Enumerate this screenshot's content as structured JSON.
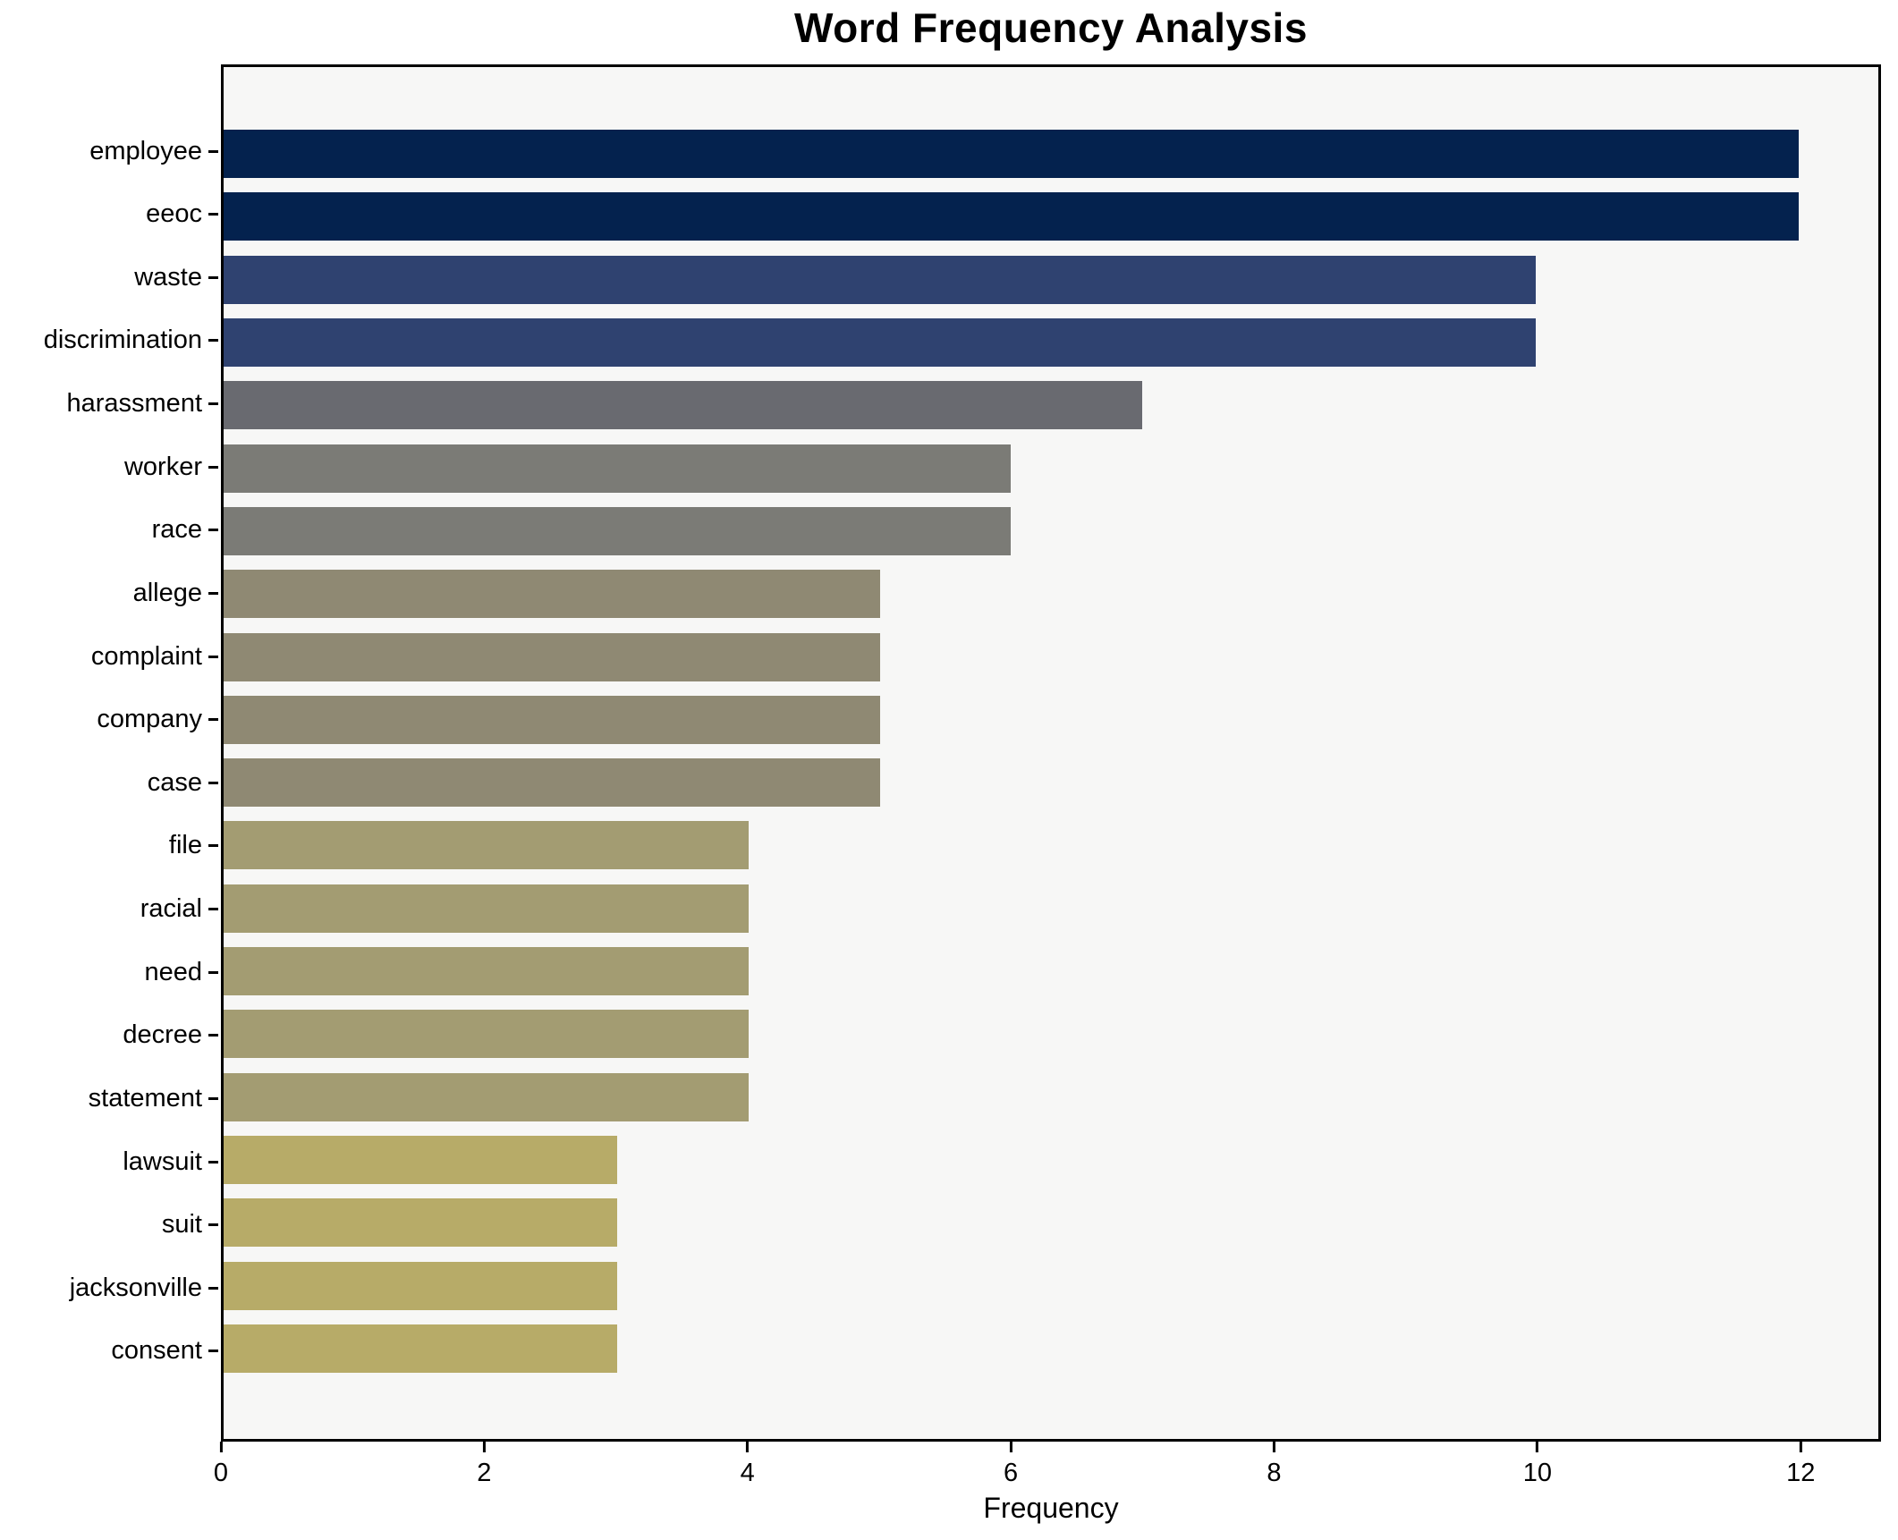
{
  "chart_data": {
    "type": "bar",
    "orientation": "horizontal",
    "title": "Word Frequency Analysis",
    "xlabel": "Frequency",
    "ylabel": "",
    "xlim": [
      0,
      12.61
    ],
    "xticks": [
      0,
      2,
      4,
      6,
      8,
      10,
      12
    ],
    "grid": false,
    "legend": null,
    "categories": [
      "employee",
      "eeoc",
      "waste",
      "discrimination",
      "harassment",
      "worker",
      "race",
      "allege",
      "complaint",
      "company",
      "case",
      "file",
      "racial",
      "need",
      "decree",
      "statement",
      "lawsuit",
      "suit",
      "jacksonville",
      "consent"
    ],
    "values": [
      12,
      12,
      10,
      10,
      7,
      6,
      6,
      5,
      5,
      5,
      5,
      4,
      4,
      4,
      4,
      4,
      3,
      3,
      3,
      3
    ],
    "bar_colors": [
      "#04224e",
      "#04224e",
      "#2f4270",
      "#2f4270",
      "#696a70",
      "#7b7b76",
      "#7b7b76",
      "#8f8973",
      "#8f8973",
      "#8f8973",
      "#8f8973",
      "#a39c72",
      "#a39c72",
      "#a39c72",
      "#a39c72",
      "#a39c72",
      "#b7ab68",
      "#b7ab68",
      "#b7ab68",
      "#b7ab68"
    ],
    "colors": {
      "plot_background": "#f7f7f6",
      "figure_background": "#ffffff",
      "axis": "#000000",
      "text": "#000000"
    }
  }
}
